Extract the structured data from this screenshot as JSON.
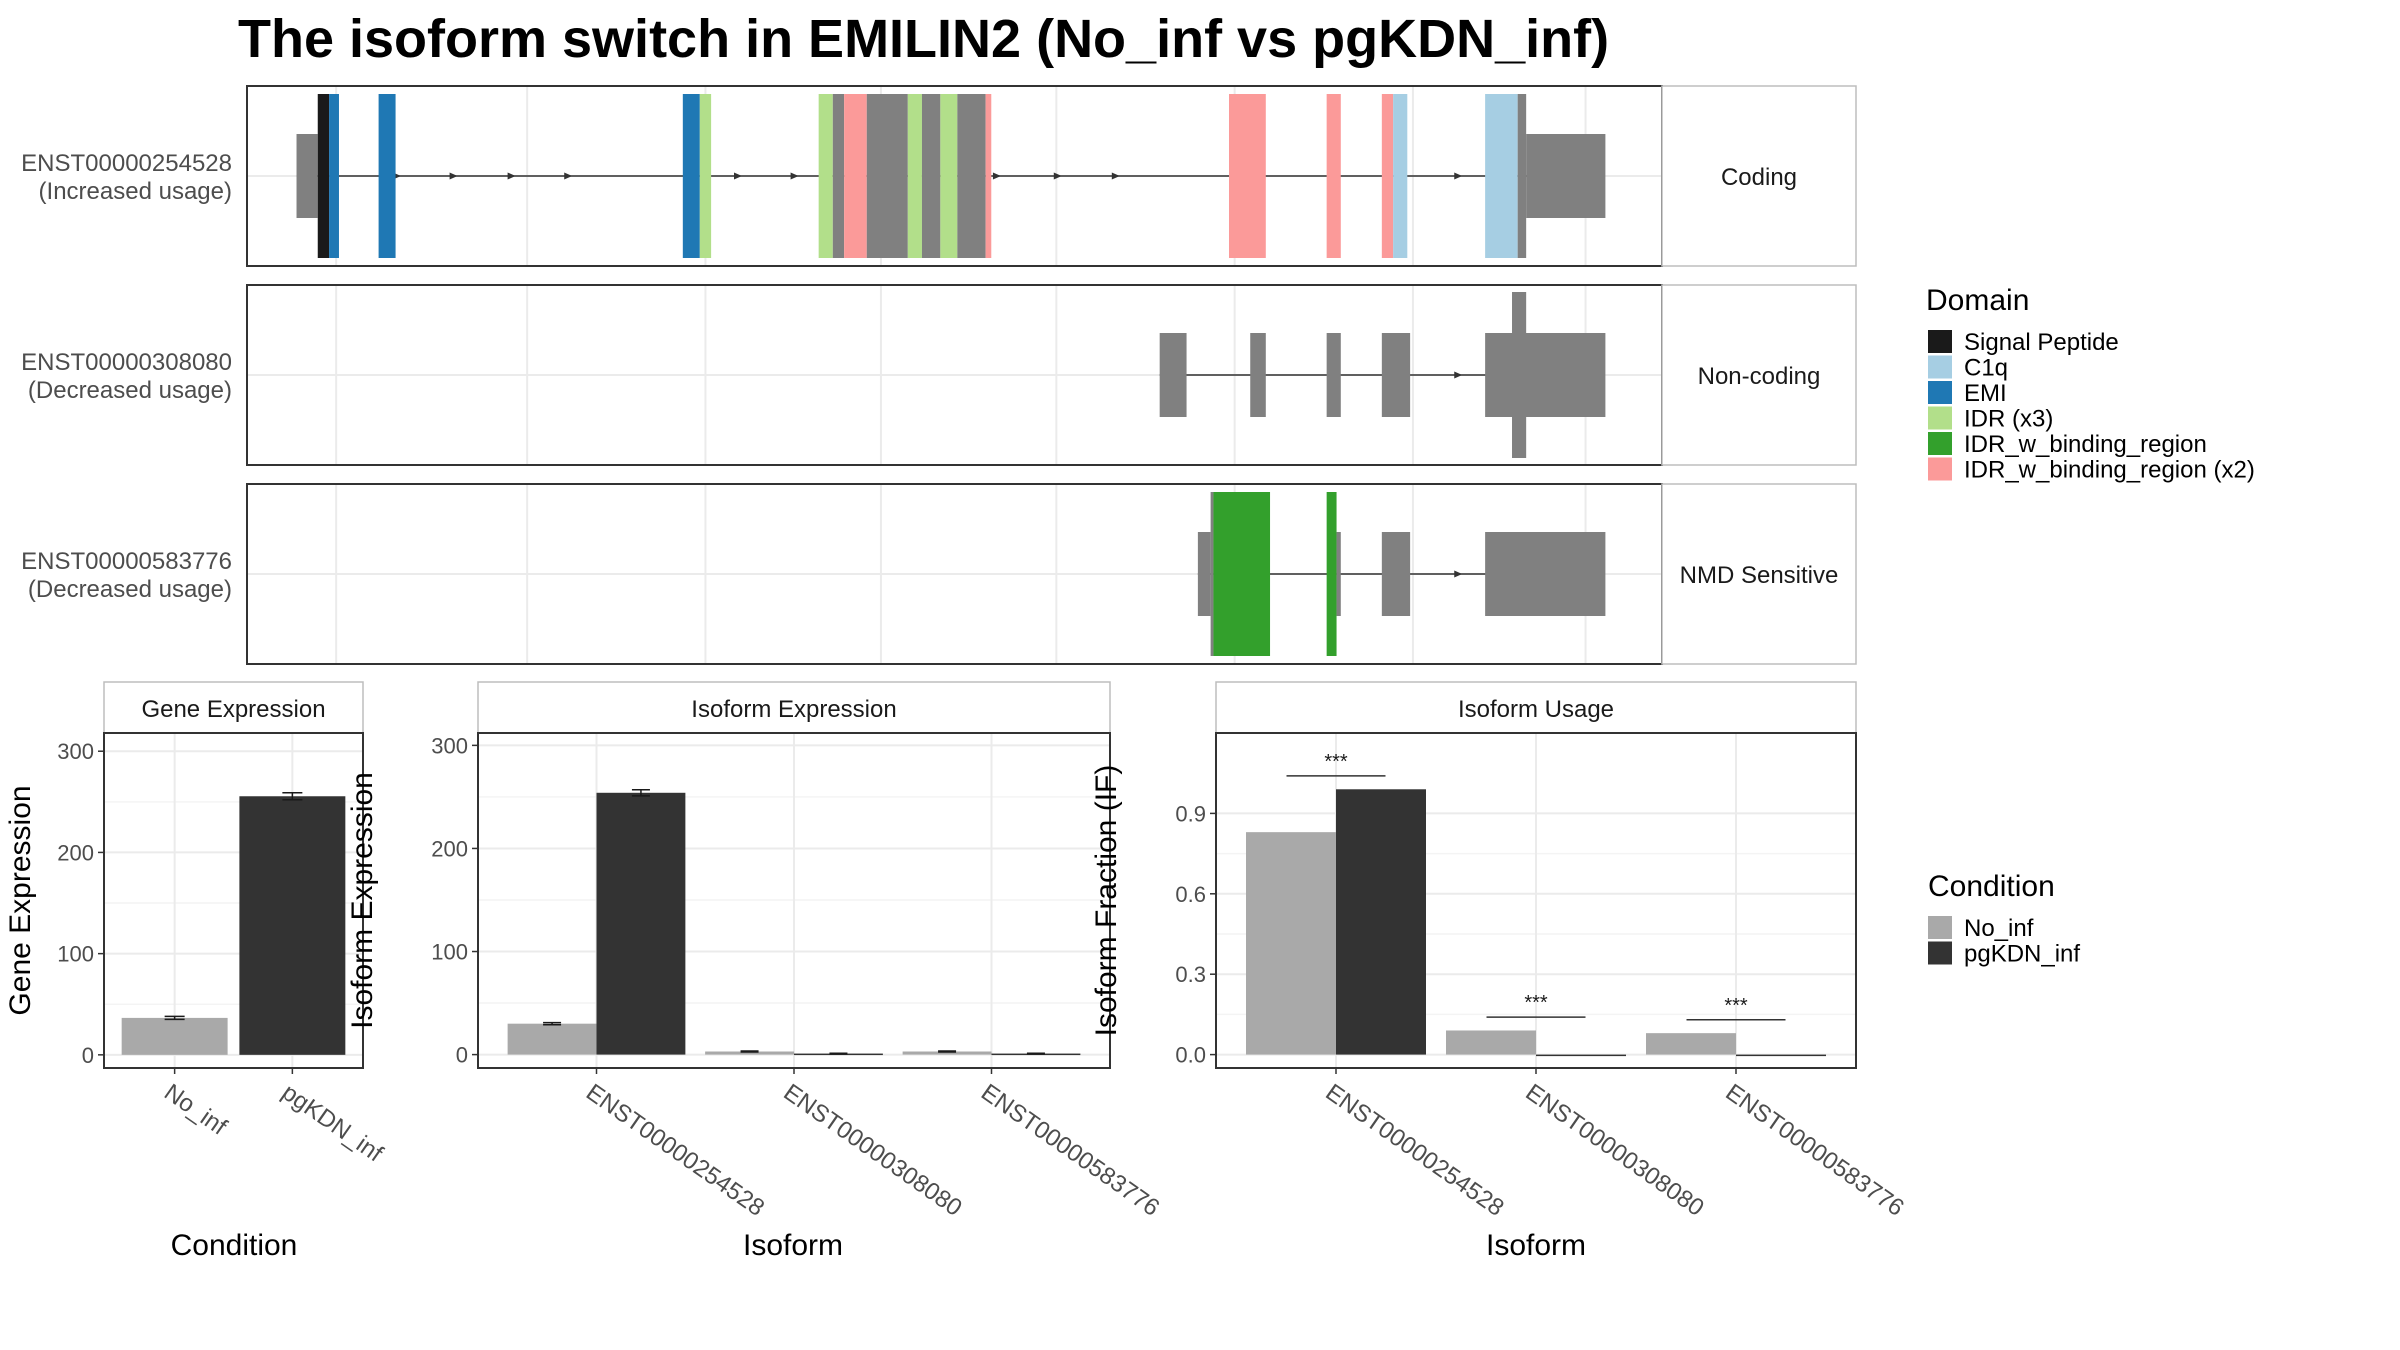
{
  "title": "The isoform switch in EMILIN2 (No_inf vs pgKDN_inf)",
  "colors": {
    "Signal Peptide": "#1a1a1a",
    "C1q": "#a6cee3",
    "EMI": "#1f78b4",
    "IDR (x3)": "#b2df8a",
    "IDR_w_binding_region": "#33a02c",
    "IDR_w_binding_region (x2)": "#fb9a99",
    "gray": "#808080",
    "No_inf": "#a9a9a9",
    "pgKDN_inf": "#333333"
  },
  "domain_legend": {
    "title": "Domain",
    "items": [
      "Signal Peptide",
      "C1q",
      "EMI",
      "IDR (x3)",
      "IDR_w_binding_region",
      "IDR_w_binding_region (x2)"
    ]
  },
  "condition_legend": {
    "title": "Condition",
    "items": [
      "No_inf",
      "pgKDN_inf"
    ]
  },
  "chart_data": [
    {
      "type": "gene_structure",
      "genome_span": [
        0,
        1000
      ],
      "tracks": [
        {
          "id": "ENST00000254528",
          "label": "ENST00000254528",
          "sublabel": "(Increased usage)",
          "strip": "Coding",
          "line": [
            35,
            909
          ],
          "arrows": [
            106,
            146,
            187,
            227,
            347,
            387,
            488,
            530,
            573,
            614,
            856
          ],
          "exons": [
            {
              "s": 35,
              "e": 50,
              "kind": "utr",
              "c": "gray"
            },
            {
              "s": 50,
              "e": 58,
              "kind": "cds",
              "c": "Signal Peptide"
            },
            {
              "s": 58,
              "e": 65,
              "kind": "cds",
              "c": "EMI"
            },
            {
              "s": 93,
              "e": 105,
              "kind": "cds",
              "c": "EMI"
            },
            {
              "s": 308,
              "e": 320,
              "kind": "cds",
              "c": "EMI"
            },
            {
              "s": 320,
              "e": 328,
              "kind": "cds",
              "c": "IDR (x3)"
            },
            {
              "s": 404,
              "e": 414,
              "kind": "cds",
              "c": "IDR (x3)"
            },
            {
              "s": 414,
              "e": 422,
              "kind": "cds",
              "c": "gray"
            },
            {
              "s": 422,
              "e": 438,
              "kind": "cds",
              "c": "IDR_w_binding_region (x2)"
            },
            {
              "s": 438,
              "e": 467,
              "kind": "cds",
              "c": "gray"
            },
            {
              "s": 467,
              "e": 477,
              "kind": "cds",
              "c": "IDR (x3)"
            },
            {
              "s": 477,
              "e": 490,
              "kind": "cds",
              "c": "gray"
            },
            {
              "s": 490,
              "e": 502,
              "kind": "cds",
              "c": "IDR (x3)"
            },
            {
              "s": 502,
              "e": 522,
              "kind": "cds",
              "c": "gray"
            },
            {
              "s": 522,
              "e": 526,
              "kind": "cds",
              "c": "IDR_w_binding_region (x2)"
            },
            {
              "s": 694,
              "e": 720,
              "kind": "cds",
              "c": "IDR_w_binding_region (x2)"
            },
            {
              "s": 763,
              "e": 773,
              "kind": "cds",
              "c": "IDR_w_binding_region (x2)"
            },
            {
              "s": 802,
              "e": 810,
              "kind": "cds",
              "c": "IDR_w_binding_region (x2)"
            },
            {
              "s": 810,
              "e": 820,
              "kind": "cds",
              "c": "C1q"
            },
            {
              "s": 875,
              "e": 898,
              "kind": "cds",
              "c": "C1q"
            },
            {
              "s": 898,
              "e": 904,
              "kind": "cds",
              "c": "gray"
            },
            {
              "s": 904,
              "e": 960,
              "kind": "utr",
              "c": "gray"
            }
          ]
        },
        {
          "id": "ENST00000308080",
          "label": "ENST00000308080",
          "sublabel": "(Decreased usage)",
          "strip": "Non-coding",
          "line": [
            645,
            909
          ],
          "arrows": [
            856
          ],
          "exons": [
            {
              "s": 645,
              "e": 664,
              "kind": "utr",
              "c": "gray"
            },
            {
              "s": 709,
              "e": 720,
              "kind": "utr",
              "c": "gray"
            },
            {
              "s": 763,
              "e": 773,
              "kind": "utr",
              "c": "gray"
            },
            {
              "s": 802,
              "e": 822,
              "kind": "utr",
              "c": "gray"
            },
            {
              "s": 875,
              "e": 960,
              "kind": "utr",
              "c": "gray"
            },
            {
              "s": 894,
              "e": 904,
              "kind": "tall",
              "c": "gray"
            }
          ]
        },
        {
          "id": "ENST00000583776",
          "label": "ENST00000583776",
          "sublabel": "(Decreased usage)",
          "strip": "NMD Sensitive",
          "line": [
            672,
            909
          ],
          "arrows": [
            856
          ],
          "exons": [
            {
              "s": 672,
              "e": 681,
              "kind": "utr",
              "c": "gray"
            },
            {
              "s": 681,
              "e": 683,
              "kind": "cds",
              "c": "gray"
            },
            {
              "s": 683,
              "e": 723,
              "kind": "cds",
              "c": "IDR_w_binding_region"
            },
            {
              "s": 763,
              "e": 770,
              "kind": "cds",
              "c": "IDR_w_binding_region"
            },
            {
              "s": 770,
              "e": 773,
              "kind": "utr",
              "c": "gray"
            },
            {
              "s": 802,
              "e": 822,
              "kind": "utr",
              "c": "gray"
            },
            {
              "s": 875,
              "e": 960,
              "kind": "utr",
              "c": "gray"
            }
          ]
        }
      ]
    },
    {
      "type": "bar",
      "strip": "Gene Expression",
      "xlabel": "Condition",
      "ylabel": "Gene Expression",
      "ylim": [
        -13,
        318
      ],
      "yticks": [
        0,
        100,
        200,
        300
      ],
      "categories": [
        "No_inf",
        "pgKDN_inf"
      ],
      "values": [
        36.5,
        255.5
      ],
      "errors": [
        1.5,
        3.5
      ]
    },
    {
      "type": "bar",
      "strip": "Isoform Expression",
      "xlabel": "Isoform",
      "ylabel": "Isoform Expression",
      "ylim": [
        -13,
        312
      ],
      "yticks": [
        0,
        100,
        200,
        300
      ],
      "categories": [
        "ENST00000254528",
        "ENST00000308080",
        "ENST00000583776"
      ],
      "series": [
        {
          "name": "No_inf",
          "values": [
            30,
            3,
            3
          ],
          "errors": [
            1,
            0.5,
            0.5
          ]
        },
        {
          "name": "pgKDN_inf",
          "values": [
            254,
            1,
            1
          ],
          "errors": [
            3,
            0.3,
            0.3
          ]
        }
      ]
    },
    {
      "type": "bar",
      "strip": "Isoform Usage",
      "xlabel": "Isoform",
      "ylabel": "Isoform Fraction (IF)",
      "ylim": [
        -0.05,
        1.2
      ],
      "yticks": [
        0.0,
        0.3,
        0.6,
        0.9
      ],
      "ytick_labels": [
        "0.0",
        "0.3",
        "0.6",
        "0.9"
      ],
      "categories": [
        "ENST00000254528",
        "ENST00000308080",
        "ENST00000583776"
      ],
      "series": [
        {
          "name": "No_inf",
          "values": [
            0.83,
            0.09,
            0.08
          ]
        },
        {
          "name": "pgKDN_inf",
          "values": [
            0.99,
            0.0,
            0.0
          ]
        }
      ],
      "significance": [
        {
          "label": "***",
          "y": 1.04
        },
        {
          "label": "***",
          "y": 0.14
        },
        {
          "label": "***",
          "y": 0.13
        }
      ]
    }
  ]
}
